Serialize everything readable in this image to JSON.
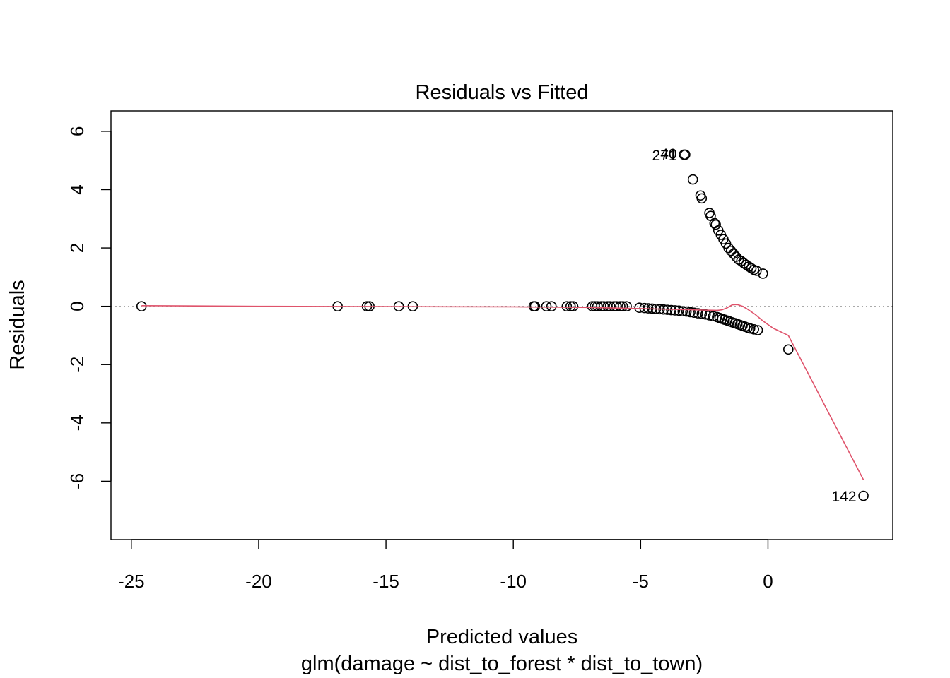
{
  "chart_data": {
    "type": "scatter",
    "title": "Residuals vs Fitted",
    "xlabel": "Predicted values",
    "subtitle": "glm(damage ~ dist_to_forest * dist_to_town)",
    "ylabel": "Residuals",
    "xlim": [
      -25.8,
      4.9
    ],
    "ylim": [
      -8.0,
      6.7
    ],
    "xticks": [
      -25,
      -20,
      -15,
      -10,
      -5,
      0
    ],
    "xtick_labels": [
      "-25",
      "-20",
      "-15",
      "-10",
      "-5",
      "0"
    ],
    "yticks": [
      -6,
      -4,
      -2,
      0,
      2,
      4,
      6
    ],
    "ytick_labels": [
      "-6",
      "-4",
      "-2",
      "0",
      "2",
      "4",
      "6"
    ],
    "grid": false,
    "reference_line": {
      "y": 0,
      "style": "dotted",
      "color": "#aaaaaa"
    },
    "colors": {
      "points": "#000000",
      "smooth": "#DF536B"
    },
    "annotations": [
      {
        "text": "271",
        "x": -3.3,
        "y": 5.2
      },
      {
        "text": "40",
        "x": -3.3,
        "y": 5.25
      },
      {
        "text": "142",
        "x": 3.75,
        "y": -6.5
      }
    ],
    "points": [
      [
        -24.6,
        0.0
      ],
      [
        -16.9,
        0.0
      ],
      [
        -15.75,
        0.0
      ],
      [
        -15.65,
        0.0
      ],
      [
        -14.5,
        0.0
      ],
      [
        -13.95,
        0.0
      ],
      [
        -9.2,
        0.0
      ],
      [
        -9.15,
        0.0
      ],
      [
        -8.7,
        0.0
      ],
      [
        -8.5,
        0.0
      ],
      [
        -7.9,
        0.0
      ],
      [
        -7.75,
        0.0
      ],
      [
        -7.65,
        0.0
      ],
      [
        -6.9,
        0.0
      ],
      [
        -6.8,
        0.0
      ],
      [
        -6.7,
        0.0
      ],
      [
        -6.55,
        0.0
      ],
      [
        -6.45,
        0.0
      ],
      [
        -6.3,
        0.0
      ],
      [
        -6.2,
        0.0
      ],
      [
        -6.05,
        0.0
      ],
      [
        -5.95,
        0.0
      ],
      [
        -5.8,
        0.0
      ],
      [
        -5.7,
        0.0
      ],
      [
        -5.55,
        0.0
      ],
      [
        -5.05,
        -0.05
      ],
      [
        -4.85,
        -0.06
      ],
      [
        -4.7,
        -0.07
      ],
      [
        -4.55,
        -0.08
      ],
      [
        -4.4,
        -0.09
      ],
      [
        -4.25,
        -0.1
      ],
      [
        -4.1,
        -0.11
      ],
      [
        -3.95,
        -0.12
      ],
      [
        -3.8,
        -0.13
      ],
      [
        -3.65,
        -0.14
      ],
      [
        -3.5,
        -0.15
      ],
      [
        -3.35,
        -0.17
      ],
      [
        -3.2,
        -0.18
      ],
      [
        -3.05,
        -0.2
      ],
      [
        -2.9,
        -0.22
      ],
      [
        -2.75,
        -0.24
      ],
      [
        -2.6,
        -0.26
      ],
      [
        -2.45,
        -0.28
      ],
      [
        -2.3,
        -0.31
      ],
      [
        -2.15,
        -0.34
      ],
      [
        -2.0,
        -0.37
      ],
      [
        -1.9,
        -0.4
      ],
      [
        -1.8,
        -0.43
      ],
      [
        -1.7,
        -0.46
      ],
      [
        -1.6,
        -0.49
      ],
      [
        -1.5,
        -0.52
      ],
      [
        -1.4,
        -0.55
      ],
      [
        -1.3,
        -0.58
      ],
      [
        -1.2,
        -0.61
      ],
      [
        -1.1,
        -0.64
      ],
      [
        -1.0,
        -0.67
      ],
      [
        -0.9,
        -0.7
      ],
      [
        -0.8,
        -0.73
      ],
      [
        -0.7,
        -0.76
      ],
      [
        -0.55,
        -0.79
      ],
      [
        -0.4,
        -0.82
      ],
      [
        -3.3,
        5.2
      ],
      [
        -3.25,
        5.2
      ],
      [
        -2.95,
        4.35
      ],
      [
        -2.65,
        3.8
      ],
      [
        -2.6,
        3.7
      ],
      [
        -2.3,
        3.2
      ],
      [
        -2.25,
        3.1
      ],
      [
        -2.1,
        2.85
      ],
      [
        -2.05,
        2.8
      ],
      [
        -1.95,
        2.6
      ],
      [
        -1.85,
        2.45
      ],
      [
        -1.75,
        2.3
      ],
      [
        -1.65,
        2.15
      ],
      [
        -1.55,
        2.0
      ],
      [
        -1.45,
        1.9
      ],
      [
        -1.35,
        1.8
      ],
      [
        -1.25,
        1.7
      ],
      [
        -1.15,
        1.6
      ],
      [
        -1.05,
        1.55
      ],
      [
        -0.95,
        1.48
      ],
      [
        -0.85,
        1.42
      ],
      [
        -0.75,
        1.36
      ],
      [
        -0.65,
        1.3
      ],
      [
        -0.55,
        1.25
      ],
      [
        -0.45,
        1.22
      ],
      [
        -0.2,
        1.12
      ],
      [
        0.8,
        -1.48
      ],
      [
        3.75,
        -6.5
      ]
    ],
    "smooth_line": [
      [
        -24.6,
        0.02
      ],
      [
        -20.0,
        0.0
      ],
      [
        -15.0,
        -0.01
      ],
      [
        -10.0,
        -0.02
      ],
      [
        -7.0,
        -0.04
      ],
      [
        -5.0,
        -0.08
      ],
      [
        -3.0,
        -0.12
      ],
      [
        -2.0,
        -0.14
      ],
      [
        -1.8,
        -0.12
      ],
      [
        -1.6,
        -0.05
      ],
      [
        -1.4,
        0.05
      ],
      [
        -1.2,
        0.06
      ],
      [
        -1.0,
        0.0
      ],
      [
        -0.8,
        -0.1
      ],
      [
        -0.5,
        -0.28
      ],
      [
        -0.2,
        -0.5
      ],
      [
        0.2,
        -0.75
      ],
      [
        0.8,
        -1.0
      ],
      [
        3.75,
        -5.95
      ]
    ]
  }
}
